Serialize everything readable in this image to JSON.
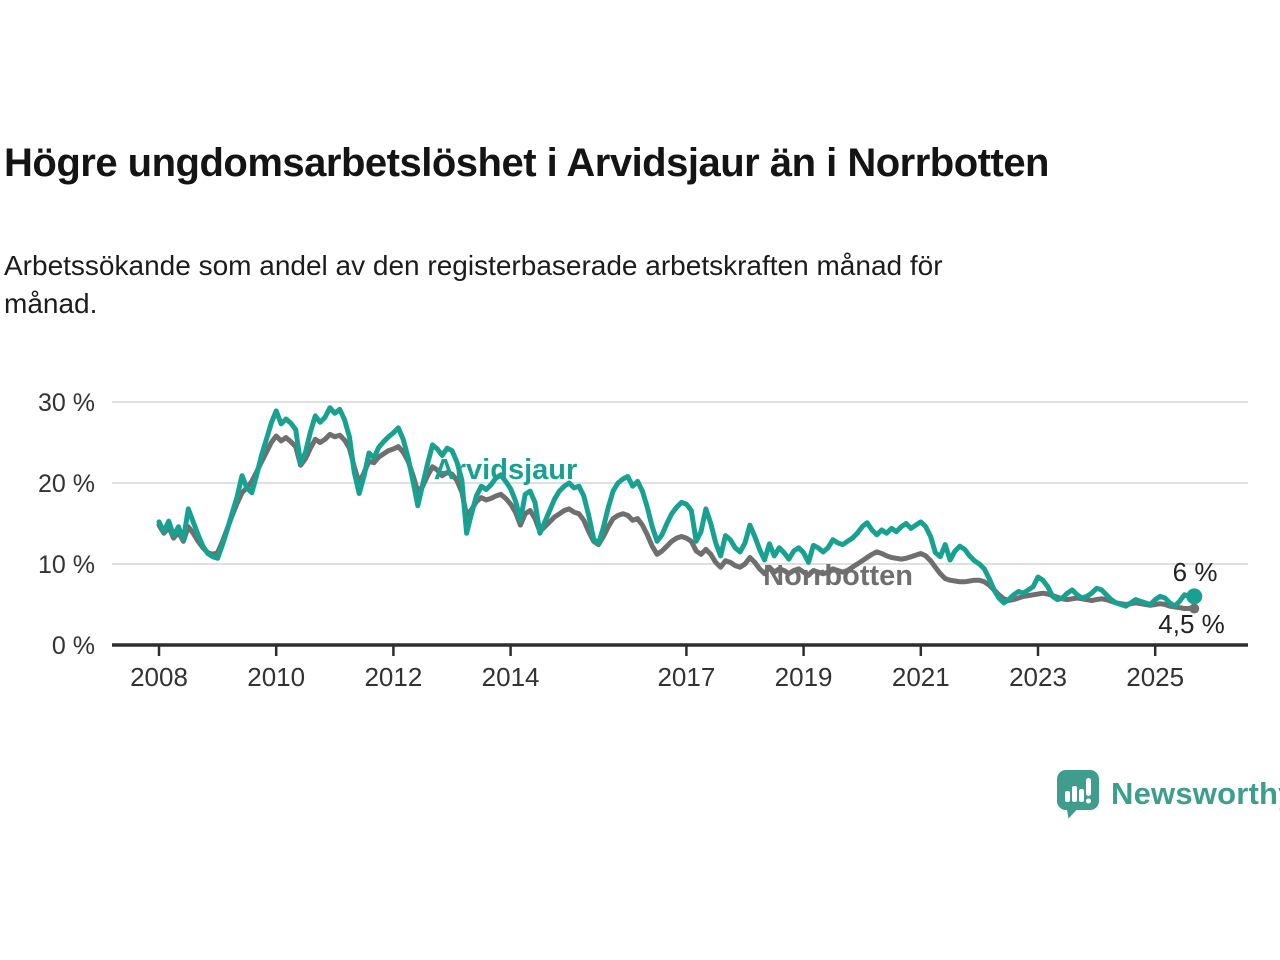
{
  "header": {
    "title": "Högre ungdomsarbetslöshet i Arvidsjaur än i Norrbotten",
    "subtitle_line1": "Arbetssökande som andel av den registerbaserade arbetskraften månad för",
    "subtitle_line2": "månad."
  },
  "footer": {
    "brand": "Newsworthy",
    "logo_icon": "bar-chart-speech-bubble-icon"
  },
  "colors": {
    "arvidsjaur": "#18A191",
    "norrbotten": "#6F6F6F",
    "gridline": "#E0E0E0",
    "axis": "#2E2E2E",
    "tick_label": "#333333",
    "title": "#141414",
    "annotation": "#222222",
    "brand_teal": "#3E9D8C",
    "background": "#FFFFFF"
  },
  "chart_data": {
    "type": "line",
    "x_start_year": 2008.0,
    "x_step_years": 0.0833333,
    "ylim": [
      0,
      30
    ],
    "grid": "horizontal-only",
    "y_ticks": [
      {
        "value": 0,
        "label": "0 %"
      },
      {
        "value": 10,
        "label": "10 %"
      },
      {
        "value": 20,
        "label": "20 %"
      },
      {
        "value": 30,
        "label": "30 %"
      }
    ],
    "x_ticks": [
      {
        "year": 2008,
        "label": "2008"
      },
      {
        "year": 2010,
        "label": "2010"
      },
      {
        "year": 2012,
        "label": "2012"
      },
      {
        "year": 2014,
        "label": "2014"
      },
      {
        "year": 2017,
        "label": "2017"
      },
      {
        "year": 2019,
        "label": "2019"
      },
      {
        "year": 2021,
        "label": "2021"
      },
      {
        "year": 2023,
        "label": "2023"
      },
      {
        "year": 2025,
        "label": "2025"
      }
    ],
    "series": [
      {
        "name": "Arvidsjaur",
        "color": "#18A191",
        "end_dot_radius": 8,
        "end_value_label": "6 %",
        "inline_label": {
          "text": "Arvidsjaur",
          "year": 2012.69,
          "value": 20.5,
          "anchor": "start"
        },
        "values": [
          15.2,
          14.0,
          15.3,
          13.5,
          14.6,
          13.0,
          16.8,
          15.2,
          13.6,
          12.2,
          11.3,
          10.9,
          10.7,
          12.4,
          14.3,
          16.3,
          18.3,
          20.9,
          19.4,
          18.8,
          21.0,
          23.4,
          25.4,
          27.4,
          28.9,
          27.3,
          27.9,
          27.4,
          26.6,
          22.4,
          23.8,
          26.3,
          28.3,
          27.5,
          28.1,
          29.3,
          28.6,
          29.1,
          27.8,
          25.7,
          21.3,
          18.7,
          20.9,
          23.7,
          23.1,
          24.4,
          25.1,
          25.7,
          26.2,
          26.8,
          25.4,
          23.2,
          20.3,
          17.2,
          19.8,
          22.4,
          24.7,
          24.2,
          23.4,
          24.3,
          24.0,
          22.6,
          20.4,
          13.8,
          16.2,
          18.4,
          19.6,
          19.2,
          19.8,
          20.6,
          21.0,
          20.2,
          19.3,
          17.8,
          15.4,
          18.6,
          19.0,
          17.6,
          13.8,
          15.2,
          16.6,
          18.0,
          19.0,
          19.6,
          20.0,
          19.4,
          19.6,
          18.4,
          16.0,
          13.1,
          12.5,
          14.5,
          17.0,
          19.0,
          20.0,
          20.5,
          20.8,
          19.6,
          20.2,
          19.0,
          17.0,
          14.6,
          12.8,
          13.6,
          15.0,
          16.2,
          17.0,
          17.6,
          17.4,
          16.6,
          12.8,
          14.0,
          16.8,
          15.0,
          12.6,
          11.0,
          13.5,
          13.0,
          12.0,
          11.5,
          12.6,
          14.8,
          13.4,
          11.8,
          10.5,
          12.5,
          11.0,
          12.0,
          11.4,
          10.6,
          11.6,
          12.0,
          11.4,
          10.2,
          12.3,
          12.0,
          11.5,
          12.0,
          13.0,
          12.6,
          12.4,
          12.8,
          13.2,
          13.8,
          14.6,
          15.1,
          14.2,
          13.6,
          14.2,
          13.8,
          14.4,
          14.0,
          14.6,
          15.0,
          14.4,
          14.8,
          15.2,
          14.6,
          13.4,
          11.4,
          10.9,
          12.4,
          10.5,
          11.6,
          12.2,
          11.8,
          11.0,
          10.4,
          10.0,
          9.4,
          8.2,
          6.8,
          5.8,
          5.2,
          5.6,
          6.2,
          6.6,
          6.4,
          6.8,
          7.2,
          8.4,
          8.0,
          7.2,
          6.0,
          5.6,
          5.8,
          6.4,
          6.8,
          6.2,
          5.8,
          6.0,
          6.4,
          7.0,
          6.8,
          6.2,
          5.6,
          5.2,
          5.0,
          4.8,
          5.2,
          5.6,
          5.4,
          5.2,
          5.0,
          5.6,
          6.0,
          5.8,
          5.2,
          4.8,
          5.4,
          6.2,
          6.0,
          6.0
        ]
      },
      {
        "name": "Norrbotten",
        "color": "#6F6F6F",
        "end_dot_radius": 5,
        "end_value_label": "4,5 %",
        "inline_label": {
          "text": "Norrbotten",
          "year": 2018.31,
          "value": 7.4,
          "anchor": "start"
        },
        "values": [
          14.8,
          13.8,
          14.5,
          13.2,
          13.9,
          12.8,
          14.6,
          13.8,
          12.8,
          12.0,
          11.4,
          11.2,
          11.4,
          12.8,
          14.4,
          16.0,
          17.5,
          18.8,
          19.4,
          20.2,
          21.4,
          22.6,
          23.8,
          25.0,
          25.8,
          25.2,
          25.6,
          25.1,
          24.5,
          22.2,
          23.0,
          24.3,
          25.4,
          25.0,
          25.4,
          26.0,
          25.7,
          25.9,
          25.3,
          24.3,
          22.0,
          20.0,
          21.3,
          22.7,
          22.5,
          23.2,
          23.6,
          24.0,
          24.2,
          24.5,
          23.8,
          22.7,
          21.0,
          18.9,
          19.6,
          20.9,
          22.0,
          21.6,
          20.9,
          21.3,
          21.1,
          20.3,
          18.9,
          16.0,
          16.7,
          17.7,
          18.2,
          17.9,
          18.1,
          18.4,
          18.6,
          18.1,
          17.4,
          16.4,
          14.8,
          16.2,
          16.6,
          15.6,
          14.0,
          14.6,
          15.2,
          15.8,
          16.2,
          16.6,
          16.8,
          16.4,
          16.2,
          15.4,
          14.0,
          12.8,
          12.4,
          13.4,
          14.6,
          15.6,
          16.0,
          16.2,
          16.0,
          15.4,
          15.6,
          14.8,
          13.6,
          12.2,
          11.2,
          11.6,
          12.2,
          12.8,
          13.2,
          13.4,
          13.2,
          12.8,
          11.6,
          11.2,
          11.8,
          11.2,
          10.2,
          9.6,
          10.4,
          10.2,
          9.8,
          9.6,
          10.0,
          10.8,
          10.2,
          9.4,
          8.8,
          9.6,
          9.0,
          9.4,
          9.2,
          8.8,
          9.2,
          9.4,
          9.0,
          8.6,
          9.2,
          9.0,
          8.8,
          9.0,
          9.4,
          9.2,
          9.0,
          9.2,
          9.6,
          10.0,
          10.4,
          10.8,
          11.2,
          11.5,
          11.3,
          11.0,
          10.8,
          10.7,
          10.6,
          10.7,
          10.9,
          11.1,
          11.3,
          11.0,
          10.4,
          9.6,
          8.8,
          8.2,
          8.0,
          7.9,
          7.8,
          7.8,
          7.9,
          8.0,
          8.0,
          7.8,
          7.4,
          6.8,
          6.2,
          5.7,
          5.5,
          5.6,
          5.8,
          6.0,
          6.1,
          6.2,
          6.3,
          6.4,
          6.3,
          6.1,
          5.9,
          5.7,
          5.6,
          5.7,
          5.8,
          5.7,
          5.6,
          5.5,
          5.6,
          5.7,
          5.6,
          5.4,
          5.2,
          5.1,
          5.0,
          5.1,
          5.2,
          5.1,
          5.0,
          4.9,
          5.0,
          5.1,
          5.0,
          4.8,
          4.7,
          4.6,
          4.5,
          4.5,
          4.5
        ]
      }
    ],
    "annotations": [
      {
        "text": "6 %",
        "year": 2025.68,
        "value": 7.9,
        "anchor": "middle"
      },
      {
        "text": "4,5 %",
        "year": 2025.62,
        "value": 1.5,
        "anchor": "middle"
      }
    ]
  }
}
